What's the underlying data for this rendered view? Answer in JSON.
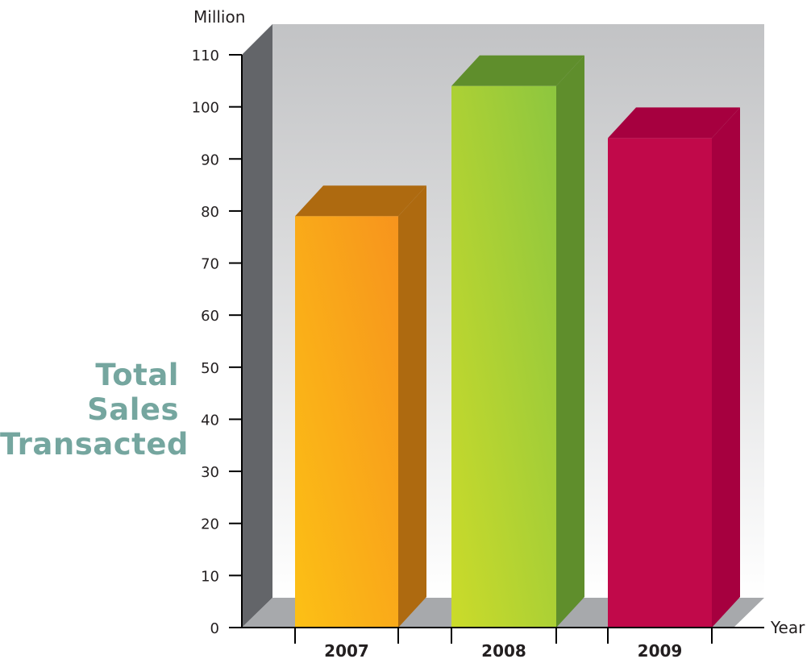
{
  "side_title": {
    "line1": "Total Sales",
    "line2": "Transacted"
  },
  "chart_data": {
    "type": "bar",
    "title": "",
    "ylabel": "Million",
    "xlabel": "Year",
    "categories": [
      "2007",
      "2008",
      "2009"
    ],
    "values": [
      79,
      104,
      94
    ],
    "ylim": [
      0,
      110
    ],
    "yticks": [
      0,
      10,
      20,
      30,
      40,
      50,
      60,
      70,
      80,
      90,
      100,
      110
    ],
    "grid": false,
    "legend": "none",
    "colors": {
      "2007": {
        "front_top": "#f7941d",
        "front_bottom": "#fcc015",
        "side": "#ae6a10",
        "top": "#ae6a10"
      },
      "2008": {
        "front_top": "#8dc63f",
        "front_bottom": "#cbdb2a",
        "side": "#5f8e2c",
        "top": "#5f8e2c"
      },
      "2009": {
        "front_top": "#c1094a",
        "front_bottom": "#c1094a",
        "side": "#a6003f",
        "top": "#a6003f"
      },
      "back_wall_top": "#c2c3c5",
      "back_wall_bottom": "#ffffff",
      "left_wall": "#636569",
      "floor": "#a7a9ac",
      "axis": "#000000",
      "side_title": "#75a69f"
    }
  }
}
